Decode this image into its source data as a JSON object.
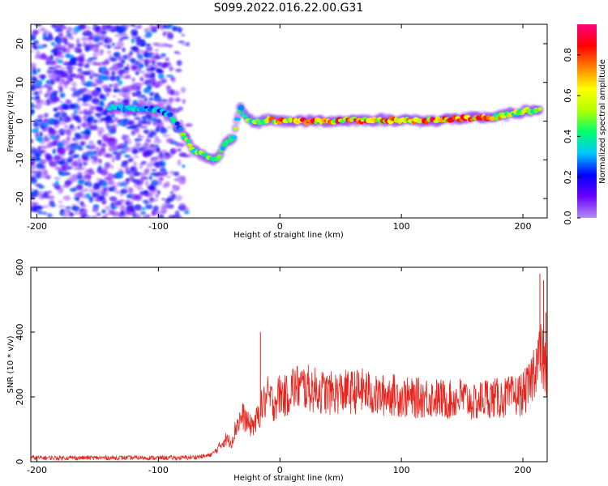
{
  "figure_title": "S099.2022.016.22.00.G31",
  "chart_data": [
    {
      "type": "heatmap",
      "title": "",
      "xlabel": "Height of straight line (km)",
      "ylabel": "Frequency (Hz)",
      "xlim": [
        -205,
        220
      ],
      "ylim": [
        -25,
        25
      ],
      "xticks": [
        -200,
        -100,
        0,
        100,
        200
      ],
      "yticks": [
        -20,
        -10,
        0,
        10,
        20
      ],
      "colorbar": {
        "label": "Normalized spectral amplitude",
        "range": [
          0.0,
          0.95
        ],
        "ticks": [
          0.0,
          0.2,
          0.4,
          0.6,
          0.8
        ],
        "colormap": [
          "#b48cf0",
          "#6a00ff",
          "#0000ff",
          "#00c8ff",
          "#00ff6a",
          "#b4ff00",
          "#ffff00",
          "#ff8000",
          "#ff0000",
          "#ff0080"
        ]
      },
      "noise_region": {
        "x": [
          -205,
          -72
        ],
        "freq": [
          -25,
          25
        ],
        "amplitude": [
          0.05,
          0.3
        ]
      },
      "signal_track": [
        {
          "x": -140,
          "freq": 3.5,
          "amp": 0.35
        },
        {
          "x": -100,
          "freq": 3.0,
          "amp": 0.35
        },
        {
          "x": -90,
          "freq": 1.5,
          "amp": 0.35
        },
        {
          "x": -80,
          "freq": -3.0,
          "amp": 0.45
        },
        {
          "x": -72,
          "freq": -7.5,
          "amp": 0.5
        },
        {
          "x": -62,
          "freq": -9.0,
          "amp": 0.5
        },
        {
          "x": -52,
          "freq": -10.0,
          "amp": 0.45
        },
        {
          "x": -45,
          "freq": -6.0,
          "amp": 0.45
        },
        {
          "x": -38,
          "freq": -4.0,
          "amp": 0.5
        },
        {
          "x": -33,
          "freq": 3.5,
          "amp": 0.5
        },
        {
          "x": -28,
          "freq": 1.0,
          "amp": 0.55
        },
        {
          "x": -20,
          "freq": -0.5,
          "amp": 0.55
        },
        {
          "x": -10,
          "freq": 0.5,
          "amp": 0.65
        },
        {
          "x": 0,
          "freq": 0.0,
          "amp": 0.75
        },
        {
          "x": 20,
          "freq": 0.0,
          "amp": 0.85
        },
        {
          "x": 40,
          "freq": 0.0,
          "amp": 0.8
        },
        {
          "x": 60,
          "freq": 0.2,
          "amp": 0.8
        },
        {
          "x": 80,
          "freq": 0.3,
          "amp": 0.75
        },
        {
          "x": 100,
          "freq": 0.3,
          "amp": 0.8
        },
        {
          "x": 120,
          "freq": 0.0,
          "amp": 0.8
        },
        {
          "x": 140,
          "freq": 0.5,
          "amp": 0.9
        },
        {
          "x": 160,
          "freq": 0.8,
          "amp": 0.8
        },
        {
          "x": 180,
          "freq": 1.2,
          "amp": 0.7
        },
        {
          "x": 200,
          "freq": 2.5,
          "amp": 0.55
        },
        {
          "x": 215,
          "freq": 3.0,
          "amp": 0.5
        }
      ]
    },
    {
      "type": "line",
      "title": "",
      "xlabel": "Height of straight line (km)",
      "ylabel": "SNR (10 * v/v)",
      "xlim": [
        -205,
        220
      ],
      "ylim": [
        0,
        600
      ],
      "xticks": [
        -200,
        -100,
        0,
        100,
        200
      ],
      "yticks": [
        0,
        200,
        400,
        600
      ],
      "series_color": "#e8231c",
      "series": [
        {
          "x": [
            -205,
            -180,
            -160,
            -140,
            -120,
            -100,
            -80,
            -70,
            -60,
            -55,
            -50,
            -45,
            -40,
            -35,
            -30,
            -25,
            -20,
            -15,
            -10,
            -5,
            0,
            5,
            10,
            20,
            30,
            40,
            50,
            60,
            70,
            80,
            90,
            100,
            110,
            120,
            130,
            140,
            150,
            160,
            170,
            180,
            190,
            200,
            205,
            210,
            215,
            220
          ],
          "y": [
            12,
            12,
            12,
            12,
            12,
            12,
            12,
            14,
            18,
            25,
            45,
            70,
            60,
            120,
            140,
            110,
            120,
            170,
            200,
            180,
            210,
            200,
            230,
            230,
            220,
            210,
            215,
            215,
            220,
            200,
            210,
            200,
            195,
            200,
            195,
            190,
            200,
            180,
            200,
            195,
            200,
            210,
            230,
            300,
            330,
            260
          ]
        }
      ],
      "spikes": [
        {
          "x": -16,
          "y": 400
        },
        {
          "x": 214,
          "y": 580
        },
        {
          "x": 217,
          "y": 560
        },
        {
          "x": 219,
          "y": 460
        }
      ]
    }
  ]
}
